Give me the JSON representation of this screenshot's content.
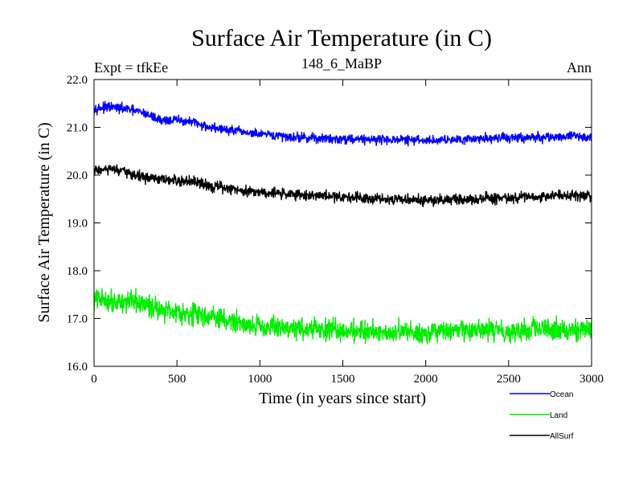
{
  "chart_data": {
    "type": "line",
    "title": "Surface Air Temperature (in C)",
    "subtitle": "148_6_MaBP",
    "left_label": "Expt = tfkEe",
    "right_label": "Ann",
    "xlabel": "Time (in years since start)",
    "ylabel": "Surface Air Temperature (in C)",
    "xlim": [
      0,
      3000
    ],
    "ylim": [
      16.0,
      22.0
    ],
    "x_ticks": [
      0,
      500,
      1000,
      1500,
      2000,
      2500,
      3000
    ],
    "y_ticks": [
      "16.0",
      "17.0",
      "18.0",
      "19.0",
      "20.0",
      "21.0",
      "22.0"
    ],
    "grid": false,
    "legend_position": "below-right",
    "series": [
      {
        "name": "Ocean",
        "color": "#0000ff",
        "noise": 0.07,
        "x": [
          0,
          100,
          200,
          300,
          400,
          500,
          600,
          700,
          800,
          900,
          1000,
          1100,
          1200,
          1300,
          1400,
          1500,
          1600,
          1700,
          1800,
          1900,
          2000,
          2100,
          2200,
          2300,
          2400,
          2500,
          2600,
          2700,
          2800,
          2900,
          3000
        ],
        "values": [
          21.4,
          21.42,
          21.38,
          21.3,
          21.15,
          21.15,
          21.1,
          21.0,
          20.95,
          20.9,
          20.85,
          20.82,
          20.8,
          20.78,
          20.76,
          20.76,
          20.76,
          20.75,
          20.74,
          20.74,
          20.72,
          20.74,
          20.76,
          20.76,
          20.78,
          20.78,
          20.78,
          20.79,
          20.8,
          20.82,
          20.78
        ]
      },
      {
        "name": "Land",
        "color": "#00ee00",
        "noise": 0.16,
        "x": [
          0,
          100,
          200,
          300,
          400,
          500,
          600,
          700,
          800,
          900,
          1000,
          1100,
          1200,
          1300,
          1400,
          1500,
          1600,
          1700,
          1800,
          1900,
          2000,
          2100,
          2200,
          2300,
          2400,
          2500,
          2600,
          2700,
          2800,
          2900,
          3000
        ],
        "values": [
          17.4,
          17.38,
          17.35,
          17.3,
          17.2,
          17.15,
          17.1,
          17.05,
          16.95,
          16.9,
          16.85,
          16.82,
          16.8,
          16.78,
          16.76,
          16.75,
          16.74,
          16.73,
          16.72,
          16.72,
          16.7,
          16.72,
          16.73,
          16.74,
          16.75,
          16.75,
          16.76,
          16.76,
          16.77,
          16.78,
          16.75
        ]
      },
      {
        "name": "AllSurf",
        "color": "#000000",
        "noise": 0.08,
        "x": [
          0,
          100,
          200,
          300,
          400,
          500,
          600,
          700,
          800,
          900,
          1000,
          1100,
          1200,
          1300,
          1400,
          1500,
          1600,
          1700,
          1800,
          1900,
          2000,
          2100,
          2200,
          2300,
          2400,
          2500,
          2600,
          2700,
          2800,
          2900,
          3000
        ],
        "values": [
          20.1,
          20.12,
          20.05,
          19.95,
          19.9,
          19.88,
          19.85,
          19.78,
          19.72,
          19.68,
          19.65,
          19.62,
          19.6,
          19.58,
          19.56,
          19.55,
          19.54,
          19.52,
          19.5,
          19.48,
          19.47,
          19.48,
          19.49,
          19.5,
          19.51,
          19.52,
          19.53,
          19.55,
          19.58,
          19.6,
          19.55
        ]
      }
    ]
  }
}
